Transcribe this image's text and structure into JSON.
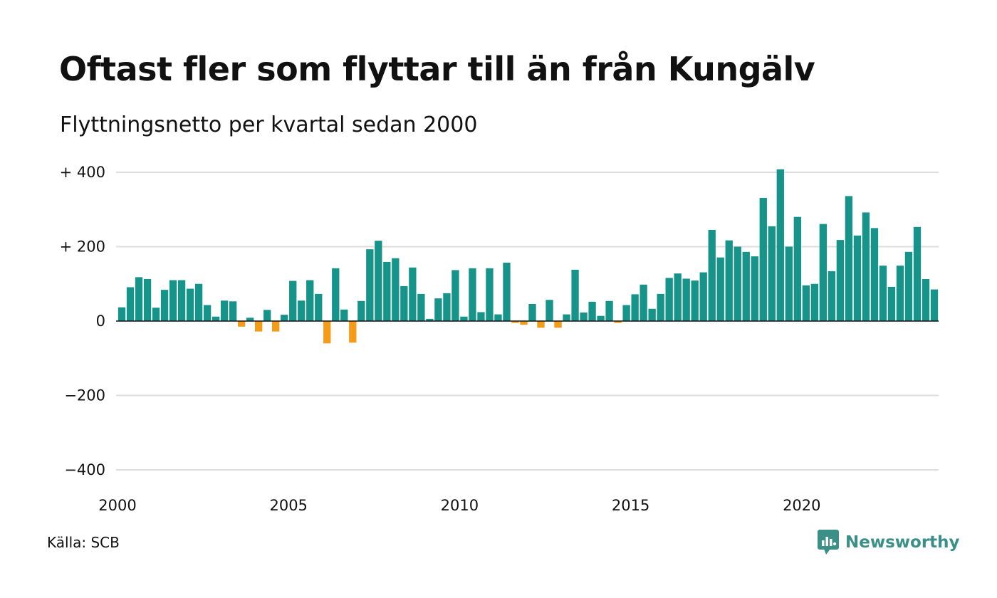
{
  "title": "Oftast fler som flyttar till än från Kungälv",
  "subtitle": "Flyttningsnetto per kvartal sedan 2000",
  "source": "Källa: SCB",
  "brand": {
    "name": "Newsworthy",
    "icon": "newsworthy-logo-icon",
    "color": "#3a8f86"
  },
  "colors": {
    "positive": "#17948a",
    "negative": "#f39c1a",
    "grid": "#dddddd",
    "zero_line": "#111111"
  },
  "chart_data": {
    "type": "bar",
    "title": "Oftast fler som flyttar till än från Kungälv",
    "subtitle": "Flyttningsnetto per kvartal sedan 2000",
    "xlabel": "",
    "ylabel": "",
    "ylim": [
      -400,
      400
    ],
    "y_ticks": [
      {
        "value": 400,
        "label": "+ 400"
      },
      {
        "value": 200,
        "label": "+ 200"
      },
      {
        "value": 0,
        "label": "0"
      },
      {
        "value": -200,
        "label": "−200"
      },
      {
        "value": -400,
        "label": "−400"
      }
    ],
    "x_ticks": [
      "2000",
      "2005",
      "2010",
      "2015",
      "2020"
    ],
    "start_year": 2000,
    "quarters_per_year": 4,
    "grid": true,
    "legend": "none",
    "values": [
      37,
      91,
      118,
      113,
      36,
      84,
      110,
      110,
      87,
      100,
      43,
      12,
      55,
      53,
      -15,
      9,
      -28,
      30,
      -28,
      17,
      108,
      55,
      110,
      73,
      -60,
      142,
      31,
      -58,
      54,
      193,
      216,
      159,
      169,
      94,
      144,
      73,
      6,
      61,
      75,
      137,
      12,
      142,
      24,
      142,
      18,
      157,
      -5,
      -10,
      46,
      -18,
      57,
      -18,
      18,
      138,
      23,
      52,
      14,
      54,
      -5,
      43,
      72,
      98,
      33,
      73,
      116,
      128,
      114,
      109,
      131,
      245,
      171,
      217,
      200,
      186,
      174,
      331,
      255,
      408,
      200,
      280,
      96,
      100,
      261,
      134,
      218,
      336,
      230,
      292,
      250,
      149,
      92,
      149,
      186,
      253,
      113,
      85
    ]
  }
}
